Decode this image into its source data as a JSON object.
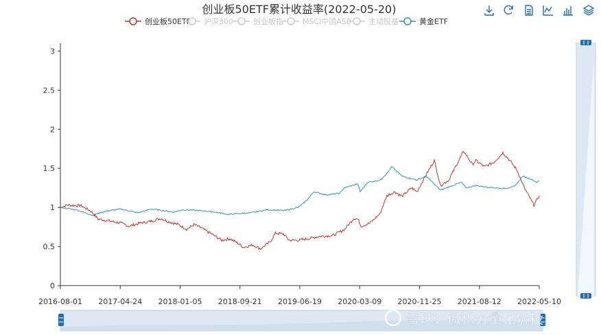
{
  "title": "创业板50ETF累计收益率(2022-05-20)",
  "watermark": "雪球：微积分量化价投",
  "toolbox": {
    "icons": [
      "download-icon",
      "refresh-icon",
      "data-view-icon",
      "line-chart-icon",
      "bar-chart-icon",
      "stack-icon"
    ],
    "color": "#1f6fb2"
  },
  "legend": [
    {
      "name": "创业板50ETF",
      "color": "#c23531",
      "active": true
    },
    {
      "name": "沪深300",
      "color": "#cccccc",
      "active": false
    },
    {
      "name": "创业板指",
      "color": "#cccccc",
      "active": false
    },
    {
      "name": "MSCI中国A50",
      "color": "#cccccc",
      "active": false
    },
    {
      "name": "主动股基",
      "color": "#cccccc",
      "active": false
    },
    {
      "name": "黄金ETF",
      "color": "#2f9aa5",
      "active": true
    }
  ],
  "chart_data": {
    "type": "line",
    "x_tick_labels": [
      "2016-08-01",
      "2017-04-24",
      "2018-01-05",
      "2018-09-21",
      "2019-06-19",
      "2020-03-09",
      "2020-11-25",
      "2021-08-12",
      "2022-05-10"
    ],
    "y_tick_labels": [
      "0",
      "0.5",
      "1",
      "1.5",
      "2",
      "2.5",
      "3"
    ],
    "ylim": [
      0,
      3.1
    ],
    "x_range": [
      "2016-08-01",
      "2022-05-20"
    ],
    "grid": false,
    "legend_position": "top-center",
    "series": [
      {
        "name": "创业板50ETF",
        "color": "#c23531",
        "points": [
          [
            "2016-08-01",
            1.0
          ],
          [
            "2016-09-01",
            1.03
          ],
          [
            "2016-11-01",
            1.02
          ],
          [
            "2016-12-15",
            0.95
          ],
          [
            "2017-01-15",
            0.85
          ],
          [
            "2017-03-01",
            0.83
          ],
          [
            "2017-04-24",
            0.8
          ],
          [
            "2017-06-01",
            0.76
          ],
          [
            "2017-07-20",
            0.8
          ],
          [
            "2017-09-01",
            0.82
          ],
          [
            "2017-10-20",
            0.86
          ],
          [
            "2017-11-20",
            0.82
          ],
          [
            "2018-01-05",
            0.78
          ],
          [
            "2018-02-10",
            0.72
          ],
          [
            "2018-03-15",
            0.78
          ],
          [
            "2018-04-15",
            0.74
          ],
          [
            "2018-06-01",
            0.66
          ],
          [
            "2018-07-15",
            0.58
          ],
          [
            "2018-08-20",
            0.6
          ],
          [
            "2018-09-21",
            0.55
          ],
          [
            "2018-10-20",
            0.49
          ],
          [
            "2018-12-01",
            0.52
          ],
          [
            "2019-01-03",
            0.47
          ],
          [
            "2019-02-15",
            0.56
          ],
          [
            "2019-03-10",
            0.67
          ],
          [
            "2019-04-15",
            0.66
          ],
          [
            "2019-05-10",
            0.58
          ],
          [
            "2019-06-19",
            0.58
          ],
          [
            "2019-08-01",
            0.6
          ],
          [
            "2019-09-20",
            0.63
          ],
          [
            "2019-11-20",
            0.64
          ],
          [
            "2020-01-10",
            0.72
          ],
          [
            "2020-02-20",
            0.86
          ],
          [
            "2020-03-09",
            0.85
          ],
          [
            "2020-03-23",
            0.76
          ],
          [
            "2020-05-01",
            0.8
          ],
          [
            "2020-06-15",
            0.92
          ],
          [
            "2020-07-15",
            1.15
          ],
          [
            "2020-08-20",
            1.2
          ],
          [
            "2020-09-20",
            1.14
          ],
          [
            "2020-11-01",
            1.25
          ],
          [
            "2020-11-25",
            1.2
          ],
          [
            "2021-01-05",
            1.42
          ],
          [
            "2021-02-10",
            1.6
          ],
          [
            "2021-03-09",
            1.28
          ],
          [
            "2021-04-15",
            1.35
          ],
          [
            "2021-05-20",
            1.55
          ],
          [
            "2021-06-20",
            1.72
          ],
          [
            "2021-07-28",
            1.55
          ],
          [
            "2021-08-12",
            1.6
          ],
          [
            "2021-09-20",
            1.52
          ],
          [
            "2021-11-01",
            1.58
          ],
          [
            "2021-12-10",
            1.7
          ],
          [
            "2022-01-10",
            1.6
          ],
          [
            "2022-02-10",
            1.48
          ],
          [
            "2022-03-15",
            1.25
          ],
          [
            "2022-04-26",
            1.03
          ],
          [
            "2022-05-10",
            1.1
          ],
          [
            "2022-05-20",
            1.15
          ]
        ]
      },
      {
        "name": "黄金ETF",
        "color": "#2f9aa5",
        "points": [
          [
            "2016-08-01",
            1.0
          ],
          [
            "2016-10-10",
            0.97
          ],
          [
            "2016-12-20",
            0.9
          ],
          [
            "2017-02-15",
            0.95
          ],
          [
            "2017-04-24",
            0.98
          ],
          [
            "2017-07-10",
            0.93
          ],
          [
            "2017-09-08",
            0.98
          ],
          [
            "2017-12-15",
            0.94
          ],
          [
            "2018-01-25",
            0.97
          ],
          [
            "2018-04-11",
            0.96
          ],
          [
            "2018-06-15",
            0.94
          ],
          [
            "2018-08-16",
            0.91
          ],
          [
            "2018-09-21",
            0.92
          ],
          [
            "2018-11-20",
            0.93
          ],
          [
            "2019-01-31",
            0.97
          ],
          [
            "2019-04-20",
            0.96
          ],
          [
            "2019-06-19",
            1.0
          ],
          [
            "2019-07-20",
            1.07
          ],
          [
            "2019-08-27",
            1.2
          ],
          [
            "2019-10-20",
            1.16
          ],
          [
            "2019-12-20",
            1.18
          ],
          [
            "2020-01-08",
            1.25
          ],
          [
            "2020-03-09",
            1.3
          ],
          [
            "2020-03-19",
            1.2
          ],
          [
            "2020-04-20",
            1.32
          ],
          [
            "2020-06-15",
            1.35
          ],
          [
            "2020-07-20",
            1.45
          ],
          [
            "2020-08-06",
            1.52
          ],
          [
            "2020-09-20",
            1.4
          ],
          [
            "2020-11-25",
            1.35
          ],
          [
            "2021-01-05",
            1.4
          ],
          [
            "2021-03-09",
            1.22
          ],
          [
            "2021-05-20",
            1.3
          ],
          [
            "2021-06-10",
            1.32
          ],
          [
            "2021-07-01",
            1.25
          ],
          [
            "2021-08-12",
            1.28
          ],
          [
            "2021-10-01",
            1.26
          ],
          [
            "2021-12-15",
            1.24
          ],
          [
            "2022-02-01",
            1.27
          ],
          [
            "2022-03-08",
            1.4
          ],
          [
            "2022-04-15",
            1.36
          ],
          [
            "2022-05-10",
            1.32
          ],
          [
            "2022-05-20",
            1.34
          ]
        ]
      }
    ]
  }
}
